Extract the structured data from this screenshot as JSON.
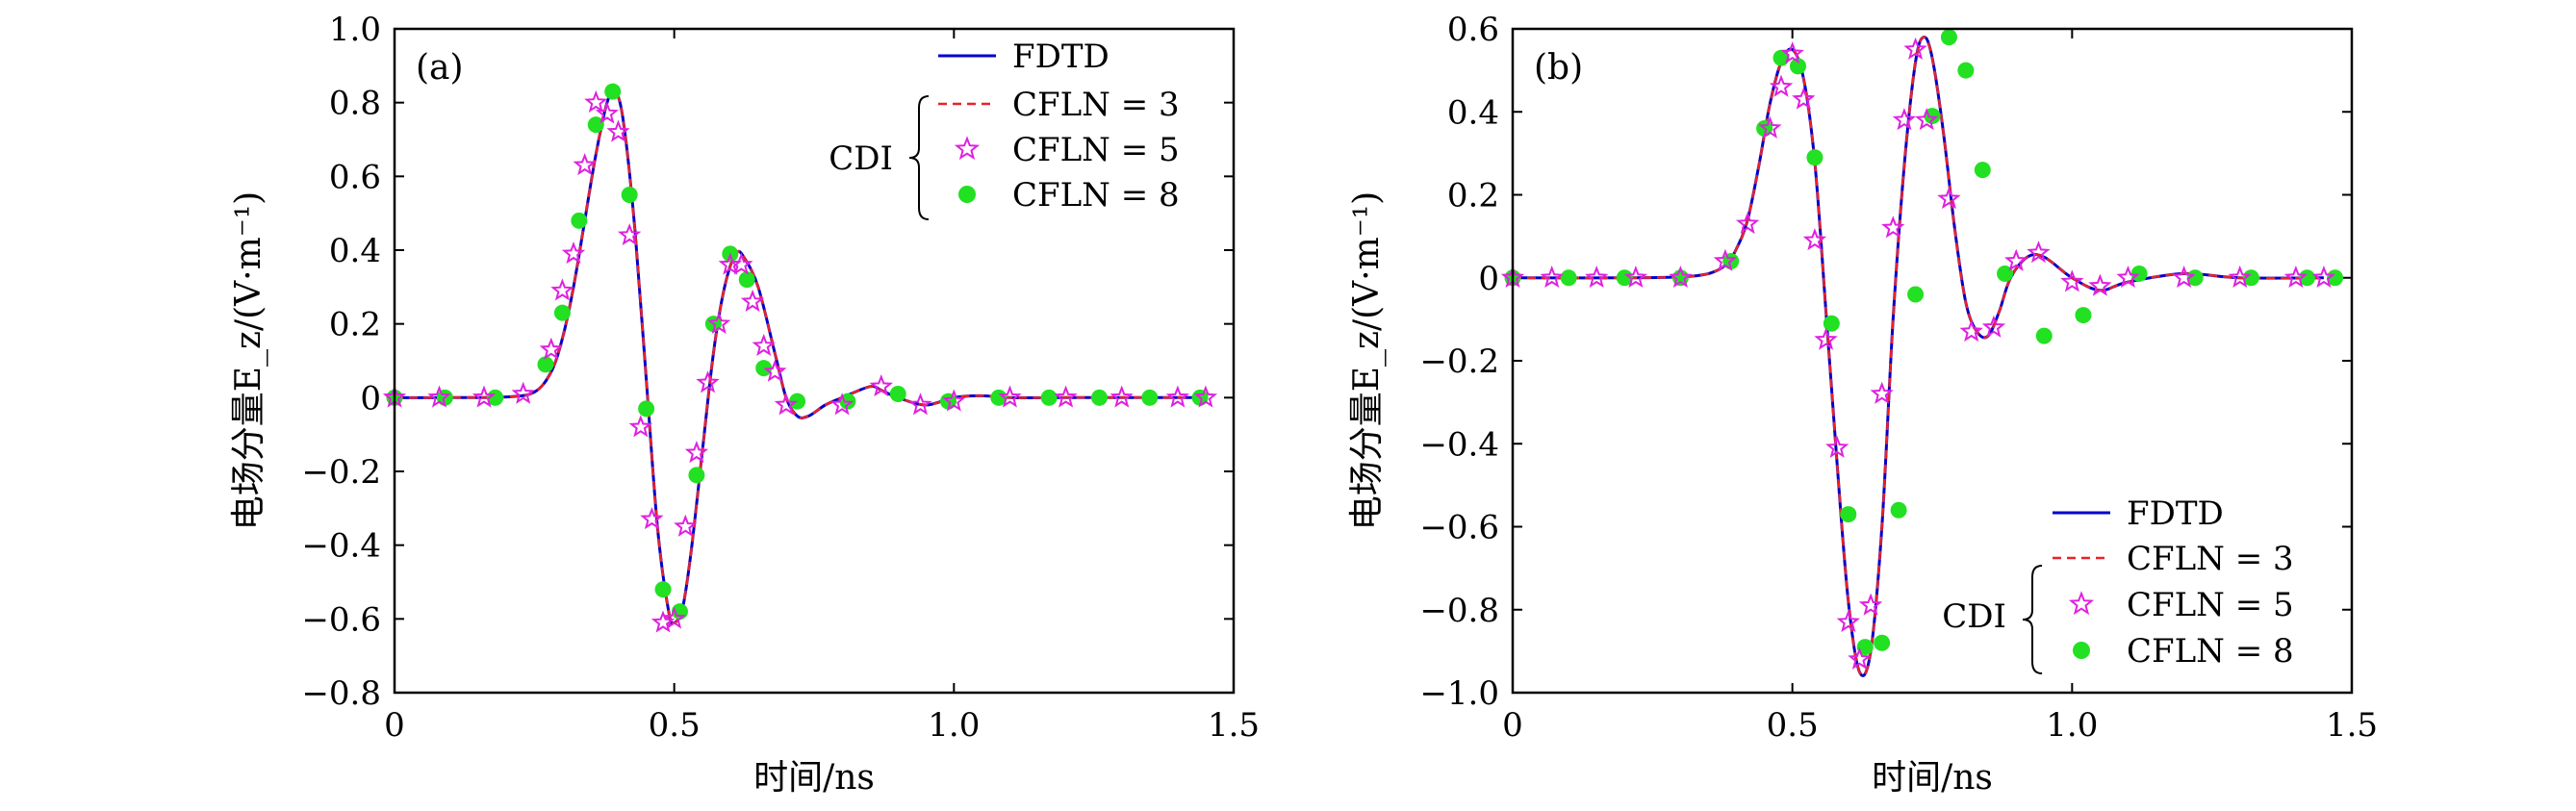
{
  "chart_data": [
    {
      "panel_label": "(a)",
      "type": "line",
      "xlabel": "时间/ns",
      "ylabel": "电场分量E_z/(V·m⁻¹)",
      "xlim": [
        0,
        1.5
      ],
      "ylim": [
        -0.8,
        1.0
      ],
      "xticks": [
        0,
        0.5,
        1.0,
        1.5
      ],
      "xtick_labels": [
        "0",
        "0.5",
        "1.0",
        "1.5"
      ],
      "yticks": [
        -0.8,
        -0.6,
        -0.4,
        -0.2,
        0,
        0.2,
        0.4,
        0.6,
        0.8,
        1.0
      ],
      "ytick_labels": [
        "−0.8",
        "−0.6",
        "−0.4",
        "−0.2",
        "0",
        "0.2",
        "0.4",
        "0.6",
        "0.8",
        "1.0"
      ],
      "legend_position": "top-right",
      "legend_group_label": "CDI",
      "legend": [
        {
          "label": "FDTD",
          "style": "solid",
          "color": "#0000cc"
        },
        {
          "label": "CFLN = 3",
          "style": "dashed",
          "color": "#e8222a"
        },
        {
          "label": "CFLN = 5",
          "style": "star",
          "color": "#e020e0"
        },
        {
          "label": "CFLN = 8",
          "style": "dot",
          "color": "#22e022"
        }
      ],
      "curve": {
        "x": [
          0,
          0.1,
          0.2,
          0.25,
          0.28,
          0.3,
          0.32,
          0.34,
          0.36,
          0.38,
          0.395,
          0.41,
          0.43,
          0.45,
          0.47,
          0.49,
          0.5,
          0.515,
          0.53,
          0.55,
          0.57,
          0.59,
          0.61,
          0.625,
          0.65,
          0.68,
          0.7,
          0.72,
          0.74,
          0.77,
          0.8,
          0.85,
          0.87,
          0.9,
          0.95,
          1.0,
          1.05,
          1.1,
          1.2,
          1.3,
          1.45
        ],
        "y": [
          0,
          0,
          0.002,
          0.015,
          0.07,
          0.16,
          0.3,
          0.48,
          0.66,
          0.8,
          0.83,
          0.74,
          0.45,
          0.05,
          -0.35,
          -0.58,
          -0.61,
          -0.57,
          -0.42,
          -0.15,
          0.12,
          0.3,
          0.39,
          0.38,
          0.3,
          0.12,
          0.0,
          -0.05,
          -0.05,
          -0.02,
          0.0,
          0.03,
          0.02,
          0.0,
          -0.02,
          0.0,
          0.005,
          0.0,
          0.0,
          0.0,
          0.0
        ]
      },
      "series_cfln5": {
        "x": [
          0,
          0.08,
          0.16,
          0.23,
          0.28,
          0.3,
          0.32,
          0.34,
          0.36,
          0.38,
          0.4,
          0.42,
          0.44,
          0.46,
          0.48,
          0.5,
          0.52,
          0.54,
          0.56,
          0.58,
          0.6,
          0.62,
          0.64,
          0.66,
          0.68,
          0.7,
          0.8,
          0.87,
          0.94,
          1.0,
          1.1,
          1.2,
          1.3,
          1.4,
          1.45
        ],
        "y": [
          0,
          0,
          0,
          0.01,
          0.13,
          0.29,
          0.39,
          0.63,
          0.8,
          0.77,
          0.72,
          0.44,
          -0.08,
          -0.33,
          -0.61,
          -0.6,
          -0.35,
          -0.15,
          0.04,
          0.2,
          0.36,
          0.36,
          0.26,
          0.14,
          0.07,
          -0.02,
          -0.02,
          0.03,
          -0.02,
          -0.01,
          0.0,
          0.0,
          0.0,
          0.0,
          0.0
        ]
      },
      "series_cfln8": {
        "x": [
          0,
          0.09,
          0.18,
          0.27,
          0.3,
          0.33,
          0.36,
          0.39,
          0.42,
          0.45,
          0.48,
          0.51,
          0.54,
          0.57,
          0.6,
          0.63,
          0.66,
          0.72,
          0.81,
          0.9,
          0.99,
          1.08,
          1.17,
          1.26,
          1.35,
          1.44
        ],
        "y": [
          0,
          0,
          0,
          0.09,
          0.23,
          0.48,
          0.74,
          0.83,
          0.55,
          -0.03,
          -0.52,
          -0.58,
          -0.21,
          0.2,
          0.39,
          0.32,
          0.08,
          -0.01,
          -0.01,
          0.01,
          -0.01,
          0.0,
          0.0,
          0.0,
          0.0,
          0.0
        ]
      }
    },
    {
      "panel_label": "(b)",
      "type": "line",
      "xlabel": "时间/ns",
      "ylabel": "电场分量E_z/(V·m⁻¹)",
      "xlim": [
        0,
        1.5
      ],
      "ylim": [
        -1.0,
        0.6
      ],
      "xticks": [
        0,
        0.5,
        1.0,
        1.5
      ],
      "xtick_labels": [
        "0",
        "0.5",
        "1.0",
        "1.5"
      ],
      "yticks": [
        -1.0,
        -0.8,
        -0.6,
        -0.4,
        -0.2,
        0,
        0.2,
        0.4,
        0.6
      ],
      "ytick_labels": [
        "−1.0",
        "−0.8",
        "−0.6",
        "−0.4",
        "−0.2",
        "0",
        "0.2",
        "0.4",
        "0.6"
      ],
      "legend_position": "bottom-right",
      "legend_group_label": "CDI",
      "legend": [
        {
          "label": "FDTD",
          "style": "solid",
          "color": "#0000cc"
        },
        {
          "label": "CFLN = 3",
          "style": "dashed",
          "color": "#e8222a"
        },
        {
          "label": "CFLN = 5",
          "style": "star",
          "color": "#e020e0"
        },
        {
          "label": "CFLN = 8",
          "style": "dot",
          "color": "#22e022"
        }
      ],
      "curve": {
        "x": [
          0,
          0.2,
          0.3,
          0.35,
          0.38,
          0.4,
          0.42,
          0.44,
          0.46,
          0.48,
          0.5,
          0.52,
          0.54,
          0.56,
          0.58,
          0.6,
          0.62,
          0.64,
          0.66,
          0.68,
          0.7,
          0.72,
          0.735,
          0.75,
          0.77,
          0.79,
          0.81,
          0.83,
          0.85,
          0.87,
          0.89,
          0.92,
          0.95,
          1.0,
          1.05,
          1.1,
          1.2,
          1.3,
          1.45
        ],
        "y": [
          0,
          0,
          0.002,
          0.01,
          0.03,
          0.07,
          0.14,
          0.27,
          0.42,
          0.52,
          0.55,
          0.48,
          0.28,
          -0.08,
          -0.45,
          -0.78,
          -0.95,
          -0.9,
          -0.6,
          -0.1,
          0.27,
          0.52,
          0.58,
          0.53,
          0.35,
          0.12,
          -0.06,
          -0.13,
          -0.14,
          -0.08,
          0.0,
          0.05,
          0.05,
          0.0,
          -0.03,
          -0.01,
          0.01,
          0.0,
          0.0
        ]
      },
      "series_cfln5": {
        "x": [
          0,
          0.07,
          0.15,
          0.22,
          0.3,
          0.38,
          0.42,
          0.46,
          0.48,
          0.5,
          0.52,
          0.54,
          0.56,
          0.58,
          0.6,
          0.62,
          0.64,
          0.66,
          0.68,
          0.7,
          0.72,
          0.74,
          0.78,
          0.82,
          0.86,
          0.9,
          0.94,
          1.0,
          1.05,
          1.1,
          1.2,
          1.3,
          1.4,
          1.45
        ],
        "y": [
          0,
          0,
          0,
          0,
          0,
          0.04,
          0.13,
          0.36,
          0.46,
          0.54,
          0.43,
          0.09,
          -0.15,
          -0.41,
          -0.83,
          -0.92,
          -0.79,
          -0.28,
          0.12,
          0.38,
          0.55,
          0.38,
          0.19,
          -0.13,
          -0.12,
          0.04,
          0.06,
          -0.01,
          -0.02,
          0.0,
          0.0,
          0.0,
          0.0,
          0.0
        ]
      },
      "series_cfln8": {
        "x": [
          0,
          0.1,
          0.2,
          0.3,
          0.39,
          0.45,
          0.48,
          0.51,
          0.54,
          0.57,
          0.6,
          0.63,
          0.66,
          0.69,
          0.72,
          0.75,
          0.78,
          0.81,
          0.84,
          0.88,
          0.95,
          1.02,
          1.12,
          1.22,
          1.32,
          1.42,
          1.47
        ],
        "y": [
          0,
          0,
          0,
          0,
          0.04,
          0.36,
          0.53,
          0.51,
          0.29,
          -0.11,
          -0.57,
          -0.89,
          -0.88,
          -0.56,
          -0.04,
          0.39,
          0.58,
          0.5,
          0.26,
          0.01,
          -0.14,
          -0.09,
          0.01,
          0.0,
          0.0,
          0.0,
          0.0
        ]
      }
    }
  ]
}
